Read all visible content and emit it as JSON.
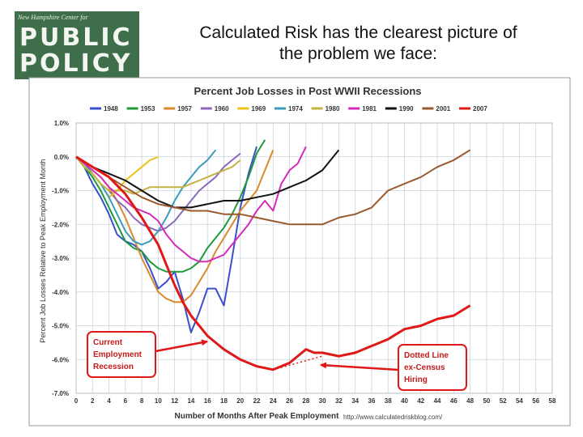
{
  "logo": {
    "top": "New Hampshire Center for",
    "line1": "PUBLIC",
    "line2": "POLICY"
  },
  "headline": {
    "line1": "Calculated Risk has the clearest picture of",
    "line2": "the problem we face:"
  },
  "chart_data": {
    "type": "line",
    "title": "Percent Job Losses in Post WWII Recessions",
    "xlabel": "Number of Months After Peak Employment",
    "ylabel": "Percent Job Losses Relative to Peak Employment Month",
    "xlim": [
      0,
      58
    ],
    "ylim": [
      -7.0,
      1.0
    ],
    "x_ticks": [
      "0",
      "2",
      "4",
      "6",
      "8",
      "10",
      "12",
      "14",
      "16",
      "18",
      "20",
      "22",
      "24",
      "26",
      "28",
      "30",
      "32",
      "34",
      "36",
      "38",
      "40",
      "42",
      "44",
      "46",
      "48",
      "50",
      "52",
      "54",
      "56",
      "58"
    ],
    "y_ticks": [
      "1.0%",
      "0.0%",
      "-1.0%",
      "-2.0%",
      "-3.0%",
      "-4.0%",
      "-5.0%",
      "-6.0%",
      "-7.0%"
    ],
    "grid": true,
    "legend_position": "top",
    "source": "http://www.calculatedriskblog.com/",
    "series": [
      {
        "name": "1948",
        "color": "#3a4fcc",
        "x": [
          0,
          1,
          2,
          3,
          4,
          5,
          6,
          7,
          8,
          9,
          10,
          11,
          12,
          13,
          14,
          15,
          16,
          17,
          18,
          19,
          20,
          21,
          22
        ],
        "y": [
          0,
          -0.3,
          -0.8,
          -1.2,
          -1.7,
          -2.3,
          -2.5,
          -2.6,
          -2.8,
          -3.3,
          -3.9,
          -3.7,
          -3.4,
          -4.2,
          -5.2,
          -4.6,
          -3.9,
          -3.9,
          -4.4,
          -3.0,
          -1.5,
          -0.5,
          0.3
        ]
      },
      {
        "name": "1953",
        "color": "#1d9a3a",
        "x": [
          0,
          1,
          2,
          3,
          4,
          5,
          6,
          7,
          8,
          9,
          10,
          11,
          12,
          13,
          14,
          15,
          16,
          17,
          18,
          19,
          20,
          21,
          22,
          23
        ],
        "y": [
          0,
          -0.3,
          -0.6,
          -1.0,
          -1.5,
          -2.0,
          -2.5,
          -2.7,
          -2.8,
          -3.1,
          -3.3,
          -3.4,
          -3.4,
          -3.4,
          -3.3,
          -3.1,
          -2.7,
          -2.4,
          -2.1,
          -1.7,
          -1.2,
          -0.6,
          0.1,
          0.5
        ]
      },
      {
        "name": "1957",
        "color": "#d88a2c",
        "x": [
          0,
          1,
          2,
          3,
          4,
          5,
          6,
          7,
          8,
          9,
          10,
          11,
          12,
          13,
          14,
          15,
          16,
          17,
          18,
          19,
          20,
          21,
          22,
          23,
          24
        ],
        "y": [
          0,
          -0.2,
          -0.4,
          -0.6,
          -0.9,
          -1.3,
          -1.8,
          -2.4,
          -3.0,
          -3.5,
          -4.0,
          -4.2,
          -4.3,
          -4.3,
          -4.1,
          -3.7,
          -3.3,
          -2.8,
          -2.4,
          -2.0,
          -1.6,
          -1.3,
          -1.0,
          -0.4,
          0.2
        ]
      },
      {
        "name": "1960",
        "color": "#8a6ab8",
        "x": [
          0,
          1,
          2,
          3,
          4,
          5,
          6,
          7,
          8,
          9,
          10,
          11,
          12,
          13,
          14,
          15,
          16,
          17,
          18,
          19,
          20
        ],
        "y": [
          0,
          -0.2,
          -0.5,
          -0.8,
          -1.0,
          -1.3,
          -1.5,
          -1.8,
          -2.0,
          -2.1,
          -2.2,
          -2.1,
          -1.9,
          -1.6,
          -1.3,
          -1.0,
          -0.8,
          -0.6,
          -0.3,
          -0.1,
          0.1
        ]
      },
      {
        "name": "1969",
        "color": "#e8c41a",
        "x": [
          0,
          1,
          2,
          3,
          4,
          5,
          6,
          7,
          8,
          9,
          10
        ],
        "y": [
          0,
          -0.2,
          -0.5,
          -0.8,
          -1.2,
          -1.0,
          -0.7,
          -0.5,
          -0.3,
          -0.1,
          0.0
        ]
      },
      {
        "name": "1974",
        "color": "#3a9eb8",
        "x": [
          0,
          1,
          2,
          3,
          4,
          5,
          6,
          7,
          8,
          9,
          10,
          11,
          12,
          13,
          14,
          15,
          16,
          17
        ],
        "y": [
          0,
          -0.2,
          -0.5,
          -0.8,
          -1.2,
          -1.7,
          -2.2,
          -2.5,
          -2.6,
          -2.5,
          -2.2,
          -1.8,
          -1.3,
          -0.9,
          -0.6,
          -0.3,
          -0.1,
          0.2
        ]
      },
      {
        "name": "1980",
        "color": "#c6b240",
        "x": [
          0,
          1,
          2,
          3,
          4,
          5,
          6,
          7,
          8,
          9,
          10,
          11,
          12,
          13,
          14,
          15,
          16,
          17,
          18,
          19,
          20
        ],
        "y": [
          0,
          -0.3,
          -0.5,
          -0.8,
          -1.0,
          -1.0,
          -1.0,
          -1.1,
          -1.0,
          -0.9,
          -0.9,
          -0.9,
          -0.9,
          -0.9,
          -0.8,
          -0.7,
          -0.6,
          -0.5,
          -0.4,
          -0.3,
          -0.1
        ]
      },
      {
        "name": "1981",
        "color": "#d62ab8",
        "x": [
          0,
          1,
          2,
          3,
          4,
          5,
          6,
          7,
          8,
          9,
          10,
          11,
          12,
          13,
          14,
          15,
          16,
          17,
          18,
          19,
          20,
          21,
          22,
          23,
          24,
          25,
          26,
          27,
          28
        ],
        "y": [
          0,
          -0.2,
          -0.4,
          -0.6,
          -0.9,
          -1.1,
          -1.3,
          -1.5,
          -1.6,
          -1.7,
          -1.9,
          -2.3,
          -2.6,
          -2.8,
          -3.0,
          -3.1,
          -3.1,
          -3.0,
          -2.9,
          -2.6,
          -2.3,
          -2.0,
          -1.6,
          -1.3,
          -1.6,
          -0.8,
          -0.4,
          -0.2,
          0.3
        ]
      },
      {
        "name": "1990",
        "color": "#111111",
        "x": [
          0,
          2,
          4,
          6,
          8,
          10,
          12,
          14,
          16,
          18,
          20,
          22,
          24,
          26,
          28,
          30,
          32
        ],
        "y": [
          0,
          -0.3,
          -0.5,
          -0.7,
          -1.0,
          -1.3,
          -1.5,
          -1.5,
          -1.4,
          -1.3,
          -1.3,
          -1.2,
          -1.1,
          -0.9,
          -0.7,
          -0.4,
          0.2
        ]
      },
      {
        "name": "2001",
        "color": "#9a5a2e",
        "x": [
          0,
          2,
          4,
          6,
          8,
          10,
          12,
          14,
          16,
          18,
          20,
          22,
          24,
          26,
          28,
          30,
          32,
          34,
          36,
          38,
          40,
          42,
          44,
          46,
          48
        ],
        "y": [
          0,
          -0.3,
          -0.6,
          -0.9,
          -1.2,
          -1.4,
          -1.5,
          -1.6,
          -1.6,
          -1.7,
          -1.7,
          -1.8,
          -1.9,
          -2.0,
          -2.0,
          -2.0,
          -1.8,
          -1.7,
          -1.5,
          -1.0,
          -0.8,
          -0.6,
          -0.3,
          -0.1,
          0.2
        ]
      },
      {
        "name": "2007",
        "color": "#e01818",
        "x": [
          0,
          2,
          4,
          6,
          8,
          10,
          12,
          13,
          14,
          15,
          16,
          18,
          20,
          22,
          24,
          25,
          26,
          27,
          28,
          29,
          30,
          32,
          34,
          36,
          38,
          40,
          42,
          44,
          46,
          48
        ],
        "y": [
          0,
          -0.3,
          -0.6,
          -1.1,
          -1.8,
          -2.6,
          -3.8,
          -4.3,
          -4.7,
          -5.0,
          -5.3,
          -5.7,
          -6.0,
          -6.2,
          -6.3,
          -6.2,
          -6.1,
          -5.9,
          -5.7,
          -5.8,
          -5.8,
          -5.9,
          -5.8,
          -5.6,
          -5.4,
          -5.1,
          -5.0,
          -4.8,
          -4.7,
          -4.4
        ]
      }
    ],
    "annotations": [
      {
        "text": [
          "Current",
          "Employment",
          "Recession"
        ]
      },
      {
        "text": [
          "Dotted Line",
          "ex-Census",
          "Hiring"
        ]
      }
    ]
  }
}
